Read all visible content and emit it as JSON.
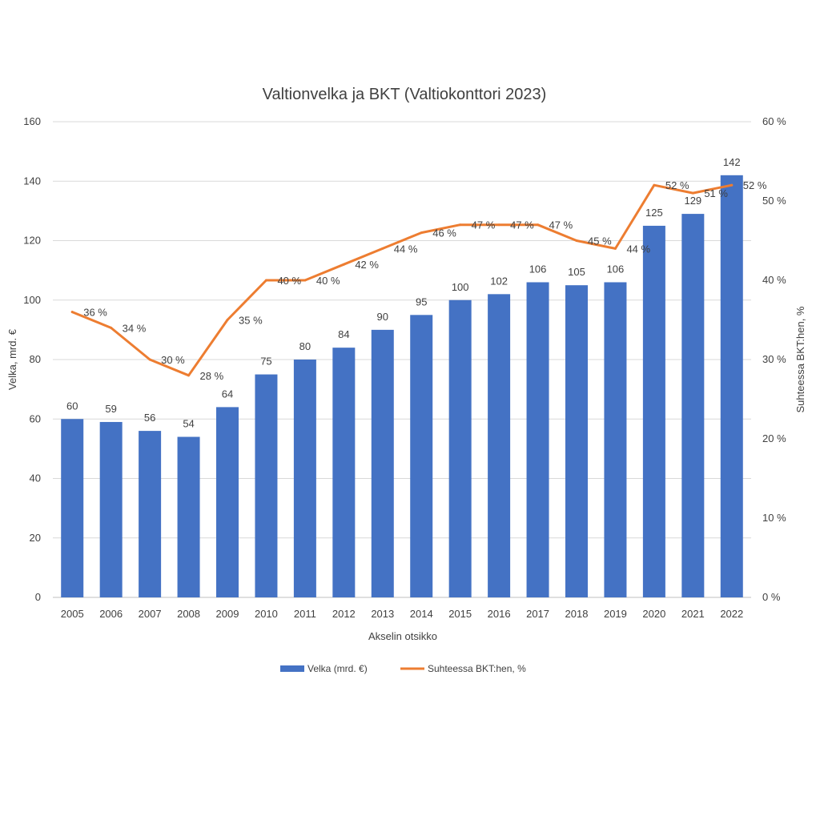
{
  "chart_data": {
    "type": "bar",
    "title": "Valtionvelka ja BKT (Valtiokonttori 2023)",
    "xlabel": "Akselin otsikko",
    "ylabel": "Velka, mrd. €",
    "y2label": "Suhteessa BKT:hen, %",
    "ylim": [
      0,
      160
    ],
    "y2lim": [
      0,
      60
    ],
    "yticks": [
      "0",
      "20",
      "40",
      "60",
      "80",
      "100",
      "120",
      "140",
      "160"
    ],
    "y2ticks": [
      "0 %",
      "10 %",
      "20 %",
      "30 %",
      "40 %",
      "50 %",
      "60 %"
    ],
    "grid": true,
    "legend_position": "bottom",
    "categories": [
      "2005",
      "2006",
      "2007",
      "2008",
      "2009",
      "2010",
      "2011",
      "2012",
      "2013",
      "2014",
      "2015",
      "2016",
      "2017",
      "2018",
      "2019",
      "2020",
      "2021",
      "2022"
    ],
    "series": [
      {
        "name": "Velka (mrd. €)",
        "type": "bar",
        "axis": "left",
        "color": "#4472C4",
        "values": [
          60,
          59,
          56,
          54,
          64,
          75,
          80,
          84,
          90,
          95,
          100,
          102,
          106,
          105,
          106,
          125,
          129,
          142
        ],
        "labels": [
          "60",
          "59",
          "56",
          "54",
          "64",
          "75",
          "80",
          "84",
          "90",
          "95",
          "100",
          "102",
          "106",
          "105",
          "106",
          "125",
          "129",
          "142"
        ]
      },
      {
        "name": "Suhteessa BKT:hen, %",
        "type": "line",
        "axis": "right",
        "color": "#ED7D31",
        "values": [
          36,
          34,
          30,
          28,
          35,
          40,
          40,
          42,
          44,
          46,
          47,
          47,
          47,
          45,
          44,
          52,
          51,
          52
        ],
        "labels": [
          "36 %",
          "34 %",
          "30 %",
          "28 %",
          "35 %",
          "40 %",
          "40 %",
          "42 %",
          "44 %",
          "46 %",
          "47 %",
          "47 %",
          "47 %",
          "45 %",
          "44 %",
          "52 %",
          "51 %",
          "52 %"
        ]
      }
    ]
  }
}
